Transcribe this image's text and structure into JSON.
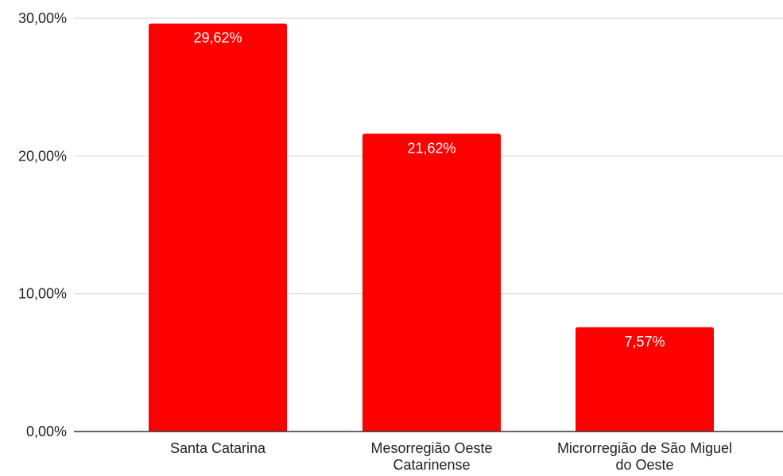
{
  "chart_data": {
    "type": "bar",
    "title": "",
    "xlabel": "",
    "ylabel": "",
    "categories": [
      [
        "Santa Catarina"
      ],
      [
        "Mesorregião Oeste",
        "Catarinense"
      ],
      [
        "Microrregião de São Miguel",
        "do Oeste"
      ]
    ],
    "values": [
      29.62,
      21.62,
      7.57
    ],
    "data_labels": [
      "29,62%",
      "21,62%",
      "7,57%"
    ],
    "ylim": [
      0,
      30
    ],
    "yticks": [
      0,
      10,
      20,
      30
    ],
    "ytick_labels": [
      "0,00%",
      "10,00%",
      "20,00%",
      "30,00%"
    ],
    "grid": true,
    "legend": "none",
    "colors": {
      "bar": "#ff0000",
      "grid": "#d9d9d9",
      "axis": "#333333",
      "text": "#222222",
      "data_label_text": "#ffffff"
    }
  }
}
